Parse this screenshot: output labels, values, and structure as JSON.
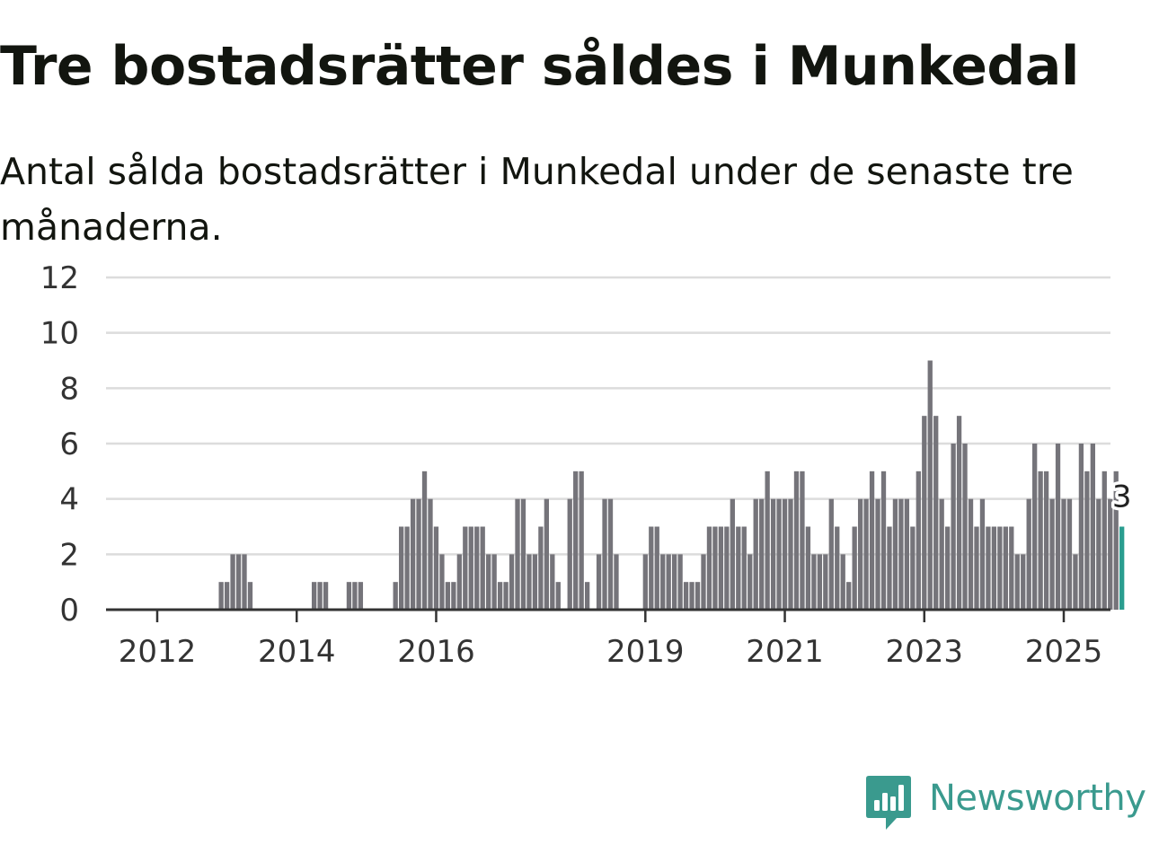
{
  "header": {
    "title": "Tre bostadsrätter såldes i Munkedal",
    "subtitle": "Antal sålda bostadsrätter i Munkedal under de senaste tre månaderna."
  },
  "brand": {
    "name": "Newsworthy",
    "color": "#3a9a8e",
    "icon": "newsworthy-logo-icon"
  },
  "chart_data": {
    "type": "bar",
    "title": "Tre bostadsrätter såldes i Munkedal",
    "subtitle": "Antal sålda bostadsrätter i Munkedal under de senaste tre månaderna.",
    "xlabel": "",
    "ylabel": "",
    "x_tick_labels": [
      "2012",
      "2014",
      "2016",
      "2019",
      "2021",
      "2023",
      "2025"
    ],
    "y_ticks": [
      0,
      2,
      4,
      6,
      8,
      10,
      12
    ],
    "ylim": [
      0,
      12
    ],
    "grid": true,
    "bar_color": "#75747a",
    "highlight_color": "#2a9d8f",
    "last_value_label": "3",
    "values": [
      0,
      0,
      0,
      0,
      0,
      0,
      0,
      0,
      0,
      0,
      0,
      1,
      1,
      2,
      2,
      2,
      1,
      0,
      0,
      0,
      0,
      0,
      0,
      0,
      0,
      0,
      0,
      1,
      1,
      1,
      0,
      0,
      0,
      1,
      1,
      1,
      0,
      0,
      0,
      0,
      0,
      1,
      3,
      3,
      4,
      4,
      5,
      4,
      3,
      2,
      1,
      1,
      2,
      3,
      3,
      3,
      3,
      2,
      2,
      1,
      1,
      2,
      4,
      4,
      2,
      2,
      3,
      4,
      2,
      1,
      0,
      4,
      5,
      5,
      1,
      0,
      2,
      4,
      4,
      2,
      0,
      0,
      0,
      0,
      2,
      3,
      3,
      2,
      2,
      2,
      2,
      1,
      1,
      1,
      2,
      3,
      3,
      3,
      3,
      4,
      3,
      3,
      2,
      4,
      4,
      5,
      4,
      4,
      4,
      4,
      5,
      5,
      3,
      2,
      2,
      2,
      4,
      3,
      2,
      1,
      3,
      4,
      4,
      5,
      4,
      5,
      3,
      4,
      4,
      4,
      3,
      5,
      7,
      9,
      7,
      4,
      3,
      6,
      7,
      6,
      4,
      3,
      4,
      3,
      3,
      3,
      3,
      3,
      2,
      2,
      4,
      6,
      5,
      5,
      4,
      6,
      4,
      4,
      2,
      6,
      5,
      6,
      4,
      5,
      4,
      5,
      3
    ]
  }
}
